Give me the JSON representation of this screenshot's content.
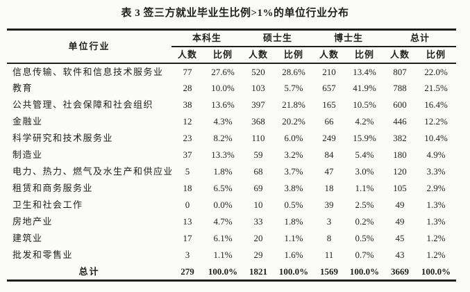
{
  "title": "表 3 签三方就业毕业生比例>1%的单位行业分布",
  "table": {
    "row_header": "单位行业",
    "groups": [
      "本科生",
      "硕士生",
      "博士生",
      "总计"
    ],
    "subheaders": [
      "人数",
      "比例",
      "人数",
      "比例",
      "人数",
      "比例",
      "人数",
      "比例"
    ],
    "rows": [
      {
        "label": "信息传输、软件和信息技术服务业",
        "values": [
          "77",
          "27.6%",
          "520",
          "28.6%",
          "210",
          "13.4%",
          "807",
          "22.0%"
        ]
      },
      {
        "label": "教育",
        "values": [
          "28",
          "10.0%",
          "103",
          "5.7%",
          "657",
          "41.9%",
          "788",
          "21.5%"
        ]
      },
      {
        "label": "公共管理、社会保障和社会组织",
        "values": [
          "38",
          "13.6%",
          "397",
          "21.8%",
          "165",
          "10.5%",
          "600",
          "16.4%"
        ]
      },
      {
        "label": "金融业",
        "values": [
          "12",
          "4.3%",
          "368",
          "20.2%",
          "66",
          "4.2%",
          "446",
          "12.2%"
        ]
      },
      {
        "label": "科学研究和技术服务业",
        "values": [
          "23",
          "8.2%",
          "110",
          "6.0%",
          "249",
          "15.9%",
          "382",
          "10.4%"
        ]
      },
      {
        "label": "制造业",
        "values": [
          "37",
          "13.3%",
          "59",
          "3.2%",
          "84",
          "5.4%",
          "180",
          "4.9%"
        ]
      },
      {
        "label": "电力、热力、燃气及水生产和供应业",
        "values": [
          "5",
          "1.8%",
          "68",
          "3.7%",
          "47",
          "3.0%",
          "120",
          "3.3%"
        ]
      },
      {
        "label": "租赁和商务服务业",
        "values": [
          "18",
          "6.5%",
          "69",
          "3.8%",
          "18",
          "1.1%",
          "105",
          "2.9%"
        ]
      },
      {
        "label": "卫生和社会工作",
        "values": [
          "0",
          "0.0%",
          "10",
          "0.5%",
          "39",
          "2.5%",
          "49",
          "1.3%"
        ]
      },
      {
        "label": "房地产业",
        "values": [
          "13",
          "4.7%",
          "33",
          "1.8%",
          "3",
          "0.2%",
          "49",
          "1.3%"
        ]
      },
      {
        "label": "建筑业",
        "values": [
          "17",
          "6.1%",
          "20",
          "1.1%",
          "8",
          "0.5%",
          "45",
          "1.2%"
        ]
      },
      {
        "label": "批发和零售业",
        "values": [
          "3",
          "1.1%",
          "29",
          "1.6%",
          "11",
          "0.7%",
          "43",
          "1.2%"
        ]
      }
    ],
    "total": {
      "label": "总计",
      "values": [
        "279",
        "100.0%",
        "1821",
        "100.0%",
        "1569",
        "100.0%",
        "3669",
        "100.0%"
      ]
    }
  },
  "colors": {
    "text": "#1f1f1f",
    "background": "#fbfbfa",
    "rule": "#1f1f1f"
  }
}
